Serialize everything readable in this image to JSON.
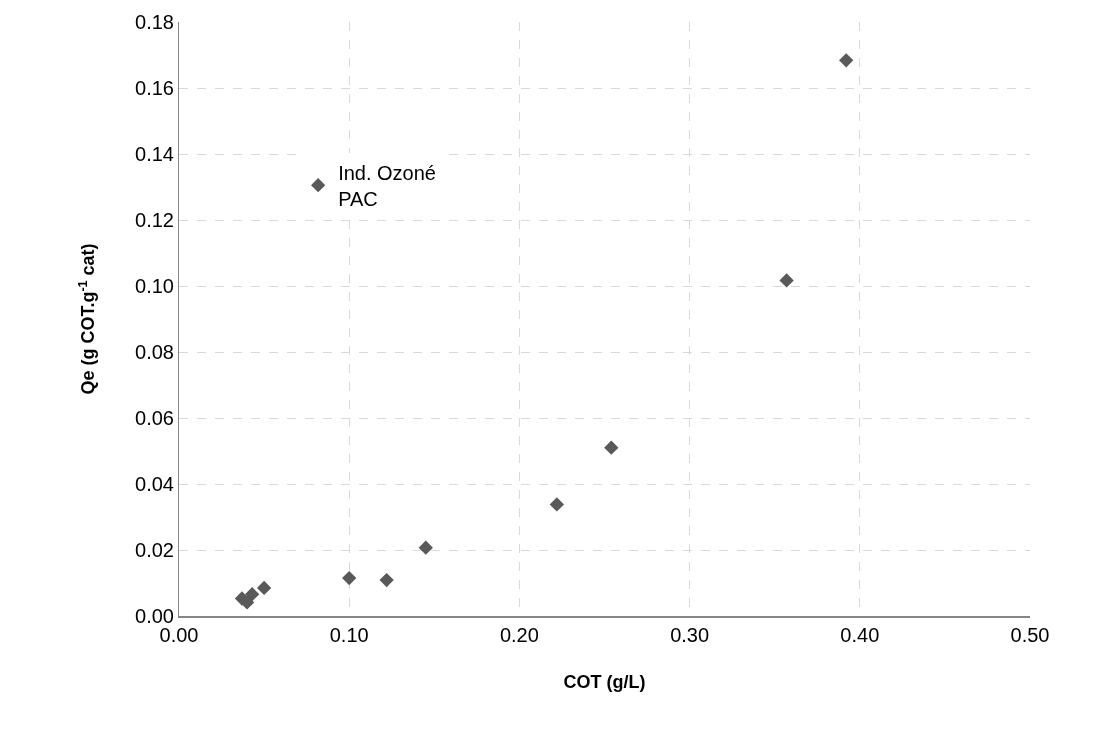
{
  "chart_data": {
    "type": "scatter",
    "xlabel": "COT (g/L)",
    "ylabel": "Qe (g COT.g$^{-1}$ cat)",
    "xlim": [
      0,
      0.5
    ],
    "xticks": [
      {
        "value": 0,
        "label": "0.00"
      },
      {
        "value": 0.1,
        "label": "0.10"
      },
      {
        "value": 0.2,
        "label": "0.20"
      },
      {
        "value": 0.3,
        "label": "0.30"
      },
      {
        "value": 0.4,
        "label": "0.40"
      },
      {
        "value": 0.5,
        "label": "0.50"
      }
    ],
    "ylim": [
      0,
      0.18
    ],
    "yticks": [
      {
        "value": 0,
        "label": "0.00"
      },
      {
        "value": 0.02,
        "label": "0.02"
      },
      {
        "value": 0.04,
        "label": "0.04"
      },
      {
        "value": 0.06,
        "label": "0.06"
      },
      {
        "value": 0.08,
        "label": "0.08"
      },
      {
        "value": 0.1,
        "label": "0.10"
      },
      {
        "value": 0.12,
        "label": "0.12"
      },
      {
        "value": 0.14,
        "label": "0.14"
      },
      {
        "value": 0.16,
        "label": "0.16"
      },
      {
        "value": 0.18,
        "label": "0.18"
      }
    ],
    "grid": true,
    "legend": "top left",
    "marker": "diamond",
    "series": [
      {
        "name": "Ind. Ozoné PAC",
        "color": "#595959",
        "x": [
          0.037,
          0.04,
          0.043,
          0.05,
          0.1,
          0.122,
          0.145,
          0.222,
          0.254,
          0.357,
          0.392
        ],
        "values": [
          0.0053,
          0.0041,
          0.0066,
          0.0085,
          0.0115,
          0.0109,
          0.0207,
          0.0338,
          0.051,
          0.1017,
          0.1684
        ]
      }
    ]
  }
}
